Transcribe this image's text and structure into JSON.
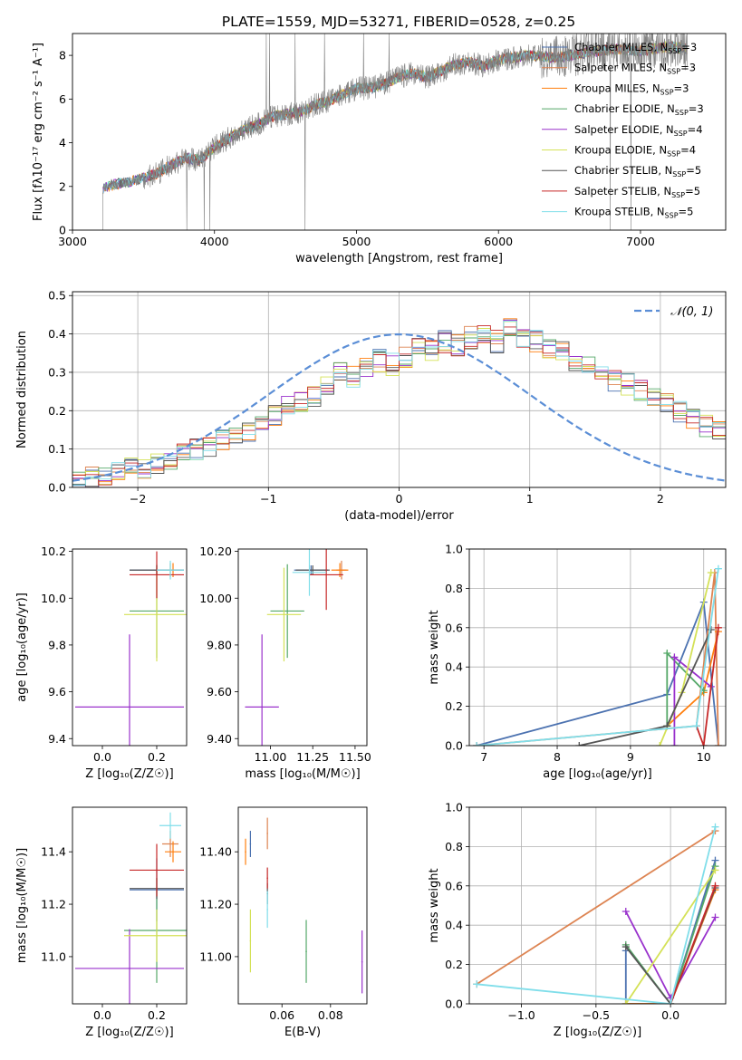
{
  "colors": [
    "#4c72b0",
    "#dd8452",
    "#ff7f0e",
    "#55a868",
    "#9932cc",
    "#d4e157",
    "#555555",
    "#c62828",
    "#80deea"
  ],
  "title": "PLATE=1559, MJD=53271, FIBERID=0528, z=0.25",
  "chart_data": [
    {
      "id": "spectrum",
      "type": "line",
      "xlabel": "wavelength [Angstrom, rest frame]",
      "ylabel": "Flux [f$_\\lambda$10$^{-17}$ erg cm$^{-2}$ s$^{-1}$ A$^{-1}$]",
      "ylabel_display": "Flux [fλ10⁻¹⁷ erg cm⁻² s⁻¹ A⁻¹]",
      "xlim": [
        3000,
        7600
      ],
      "ylim": [
        0,
        9
      ],
      "xticks": [
        3000,
        4000,
        5000,
        6000,
        7000
      ],
      "yticks": [
        0,
        2,
        4,
        6,
        8
      ],
      "legend": [
        {
          "label": "Chabrier MILES, N",
          "sub": "SSP",
          "tail": "=3"
        },
        {
          "label": "Salpeter MILES, N",
          "sub": "SSP",
          "tail": "=3"
        },
        {
          "label": "Kroupa MILES, N",
          "sub": "SSP",
          "tail": "=3"
        },
        {
          "label": "Chabrier ELODIE, N",
          "sub": "SSP",
          "tail": "=3"
        },
        {
          "label": "Salpeter ELODIE, N",
          "sub": "SSP",
          "tail": "=4"
        },
        {
          "label": "Kroupa ELODIE, N",
          "sub": "SSP",
          "tail": "=4"
        },
        {
          "label": "Chabrier STELIB, N",
          "sub": "SSP",
          "tail": "=5"
        },
        {
          "label": "Salpeter STELIB, N",
          "sub": "SSP",
          "tail": "=5"
        },
        {
          "label": "Kroupa STELIB, N",
          "sub": "SSP",
          "tail": "=5"
        }
      ],
      "data_series": {
        "name": "data",
        "color": "#808080",
        "x": [
          3215,
          3300,
          3400,
          3500,
          3600,
          3700,
          3800,
          3900,
          4000,
          4100,
          4200,
          4300,
          4400,
          4500,
          4600,
          4700,
          4800,
          4900,
          5000,
          5100,
          5200,
          5300,
          5400,
          5500,
          5600,
          5700,
          5800,
          5900,
          6000,
          6200,
          6400,
          6600,
          6800,
          7000,
          7200,
          7330
        ],
        "y": [
          1.9,
          2.1,
          2.2,
          2.4,
          2.6,
          3.0,
          3.3,
          3.2,
          3.8,
          4.2,
          4.6,
          4.8,
          5.2,
          5.3,
          5.4,
          5.7,
          5.9,
          6.2,
          6.5,
          6.5,
          6.7,
          7.0,
          7.2,
          7.0,
          7.3,
          7.6,
          7.7,
          7.5,
          7.8,
          8.0,
          7.9,
          8.1,
          8.3,
          8.2,
          8.4,
          8.3
        ]
      }
    },
    {
      "id": "residual-histogram",
      "type": "bar",
      "xlabel": "(data-model)/error",
      "ylabel": "Normed distribution",
      "xlim": [
        -2.5,
        2.5
      ],
      "ylim": [
        0,
        0.51
      ],
      "xticks": [
        -2,
        -1,
        0,
        1,
        2
      ],
      "yticks": [
        0.0,
        0.1,
        0.2,
        0.3,
        0.4,
        0.5
      ],
      "legend_label": "𝒩(0, 1)",
      "curve": {
        "mean": 0,
        "sigma": 1,
        "color": "#5b8ed6"
      },
      "bin_edges_start": -2.5,
      "bin_width": 0.1,
      "hist_values": [
        0.02,
        0.025,
        0.03,
        0.04,
        0.05,
        0.05,
        0.06,
        0.07,
        0.09,
        0.1,
        0.11,
        0.12,
        0.13,
        0.15,
        0.17,
        0.19,
        0.21,
        0.22,
        0.24,
        0.26,
        0.3,
        0.29,
        0.31,
        0.33,
        0.32,
        0.34,
        0.36,
        0.36,
        0.38,
        0.37,
        0.39,
        0.4,
        0.38,
        0.42,
        0.39,
        0.38,
        0.36,
        0.35,
        0.33,
        0.31,
        0.3,
        0.28,
        0.27,
        0.25,
        0.24,
        0.22,
        0.2,
        0.18,
        0.16,
        0.15
      ]
    },
    {
      "id": "age-vs-Z",
      "type": "scatter",
      "xlabel": "Z [log₁₀(Z/Z☉)]",
      "ylabel": "age  [log₁₀(age/yr)]",
      "xlim": [
        -0.11,
        0.31
      ],
      "ylim": [
        9.37,
        10.21
      ],
      "xticks": [
        0.0,
        0.2
      ],
      "yticks": [
        9.4,
        9.6,
        9.8,
        10.0,
        10.2
      ],
      "points": [
        {
          "x": 0.2,
          "y": 10.12,
          "xerr": 0.1,
          "yerr": 0.02
        },
        {
          "x": 0.25,
          "y": 10.12,
          "xerr": 0.02,
          "yerr": 0.03
        },
        {
          "x": 0.26,
          "y": 10.12,
          "xerr": 0.02,
          "yerr": 0.03
        },
        {
          "x": 0.2,
          "y": 9.945,
          "xerr": 0.1,
          "yerr": 0.2
        },
        {
          "x": 0.1,
          "y": 9.535,
          "xerr": 0.2,
          "yerr": 0.31
        },
        {
          "x": 0.2,
          "y": 9.93,
          "xerr": 0.12,
          "yerr": 0.2
        },
        {
          "x": 0.2,
          "y": 10.12,
          "xerr": 0.1,
          "yerr": 0.02
        },
        {
          "x": 0.2,
          "y": 10.1,
          "xerr": 0.1,
          "yerr": 0.1
        },
        {
          "x": 0.25,
          "y": 10.12,
          "xerr": 0.05,
          "yerr": 0.04
        }
      ]
    },
    {
      "id": "age-vs-mass",
      "type": "scatter",
      "xlabel": "mass [log₁₀(M/M☉)]",
      "ylabel": "",
      "xlim": [
        10.81,
        11.57
      ],
      "ylim": [
        9.37,
        10.21
      ],
      "xticks": [
        11.0,
        11.25,
        11.5
      ],
      "yticks": [
        9.4,
        9.6,
        9.8,
        10.0,
        10.2
      ],
      "points": [
        {
          "x": 11.24,
          "y": 10.12,
          "xerr": 0.1,
          "yerr": 0.02
        },
        {
          "x": 11.42,
          "y": 10.12,
          "xerr": 0.03,
          "yerr": 0.04
        },
        {
          "x": 11.41,
          "y": 10.12,
          "xerr": 0.05,
          "yerr": 0.03
        },
        {
          "x": 11.1,
          "y": 9.945,
          "xerr": 0.1,
          "yerr": 0.2
        },
        {
          "x": 10.95,
          "y": 9.535,
          "xerr": 0.1,
          "yerr": 0.31
        },
        {
          "x": 11.08,
          "y": 9.93,
          "xerr": 0.1,
          "yerr": 0.2
        },
        {
          "x": 11.25,
          "y": 10.12,
          "xerr": 0.1,
          "yerr": 0.02
        },
        {
          "x": 11.33,
          "y": 10.1,
          "xerr": 0.1,
          "yerr": 0.15
        },
        {
          "x": 11.23,
          "y": 10.11,
          "xerr": 0.1,
          "yerr": 0.1
        }
      ]
    },
    {
      "id": "mass-weight-vs-age",
      "type": "line",
      "xlabel": "age  [log₁₀(age/yr)]",
      "ylabel": "mass weight",
      "xlim": [
        6.8,
        10.3
      ],
      "ylim": [
        0,
        1.0
      ],
      "xticks": [
        7,
        8,
        9,
        10
      ],
      "yticks": [
        0.0,
        0.2,
        0.4,
        0.6,
        0.8,
        1.0
      ],
      "series": [
        {
          "x": [
            6.9,
            9.5,
            10.0,
            10.2
          ],
          "y": [
            0.0,
            0.26,
            0.73,
            0.0
          ]
        },
        {
          "x": [
            6.9,
            9.9,
            10.15,
            10.2
          ],
          "y": [
            0.0,
            0.1,
            0.88,
            0.0
          ]
        },
        {
          "x": [
            9.5,
            10.0,
            10.2
          ],
          "y": [
            0.1,
            0.27,
            0.58
          ]
        },
        {
          "x": [
            9.5,
            9.5,
            10.0
          ],
          "y": [
            0.1,
            0.47,
            0.28
          ]
        },
        {
          "x": [
            9.6,
            9.6,
            10.1
          ],
          "y": [
            0.0,
            0.45,
            0.3
          ]
        },
        {
          "x": [
            9.4,
            9.7,
            10.1
          ],
          "y": [
            0.0,
            0.27,
            0.88
          ]
        },
        {
          "x": [
            8.3,
            9.5,
            10.1
          ],
          "y": [
            0.0,
            0.1,
            0.59
          ]
        },
        {
          "x": [
            9.9,
            10.0,
            10.2
          ],
          "y": [
            0.1,
            0.0,
            0.6
          ]
        },
        {
          "x": [
            6.9,
            9.9,
            10.2
          ],
          "y": [
            0.0,
            0.1,
            0.9
          ]
        }
      ]
    },
    {
      "id": "mass-vs-Z",
      "type": "scatter",
      "xlabel": "Z [log₁₀(Z/Z☉)]",
      "ylabel": "mass [log₁₀(M/M☉)]",
      "xlim": [
        -0.11,
        0.31
      ],
      "ylim": [
        10.82,
        11.57
      ],
      "xticks": [
        0.0,
        0.2
      ],
      "yticks": [
        11.0,
        11.2,
        11.4
      ],
      "points": [
        {
          "x": 0.2,
          "y": 11.255,
          "xerr": 0.1,
          "yerr": 0.12
        },
        {
          "x": 0.25,
          "y": 11.43,
          "xerr": 0.03,
          "yerr": 0.05
        },
        {
          "x": 0.26,
          "y": 11.4,
          "xerr": 0.03,
          "yerr": 0.04
        },
        {
          "x": 0.2,
          "y": 11.1,
          "xerr": 0.12,
          "yerr": 0.2
        },
        {
          "x": 0.1,
          "y": 10.955,
          "xerr": 0.2,
          "yerr": 0.15
        },
        {
          "x": 0.2,
          "y": 11.08,
          "xerr": 0.12,
          "yerr": 0.1
        },
        {
          "x": 0.2,
          "y": 11.26,
          "xerr": 0.1,
          "yerr": 0.04
        },
        {
          "x": 0.2,
          "y": 11.33,
          "xerr": 0.1,
          "yerr": 0.1
        },
        {
          "x": 0.25,
          "y": 11.5,
          "xerr": 0.04,
          "yerr": 0.05
        }
      ]
    },
    {
      "id": "mass-vs-EBV",
      "type": "scatter",
      "xlabel": "E(B-V)",
      "ylabel": "",
      "xlim": [
        0.042,
        0.095
      ],
      "ylim": [
        10.82,
        11.57
      ],
      "xticks": [
        0.06,
        0.08
      ],
      "yticks": [
        11.0,
        11.2,
        11.4
      ],
      "points": [
        {
          "x": 0.047,
          "y": 11.43,
          "yerr": 0.05
        },
        {
          "x": 0.054,
          "y": 11.47,
          "yerr": 0.06
        },
        {
          "x": 0.045,
          "y": 11.4,
          "yerr": 0.05
        },
        {
          "x": 0.07,
          "y": 11.02,
          "yerr": 0.12
        },
        {
          "x": 0.093,
          "y": 10.98,
          "yerr": 0.12
        },
        {
          "x": 0.047,
          "y": 11.06,
          "yerr": 0.12
        },
        {
          "x": 0.054,
          "y": 11.24,
          "yerr": 0.04
        },
        {
          "x": 0.054,
          "y": 11.3,
          "yerr": 0.04
        },
        {
          "x": 0.054,
          "y": 11.18,
          "yerr": 0.07
        }
      ]
    },
    {
      "id": "mass-weight-vs-Z",
      "type": "line",
      "xlabel": "Z [log₁₀(Z/Z☉)]",
      "ylabel": "mass weight",
      "xlim": [
        -1.35,
        0.37
      ],
      "ylim": [
        0,
        1.0
      ],
      "xticks": [
        -1.0,
        -0.5,
        0.0
      ],
      "yticks": [
        0.0,
        0.2,
        0.4,
        0.6,
        0.8,
        1.0
      ],
      "series": [
        {
          "x": [
            -0.3,
            -0.3,
            0.0,
            0.3
          ],
          "y": [
            0.27,
            0.0,
            0.0,
            0.73
          ]
        },
        {
          "x": [
            -1.3,
            0.3
          ],
          "y": [
            0.1,
            0.88
          ]
        },
        {
          "x": [
            -0.3,
            0.0,
            0.3
          ],
          "y": [
            0.0,
            0.0,
            0.58
          ]
        },
        {
          "x": [
            -0.3,
            0.0,
            0.3
          ],
          "y": [
            0.3,
            0.0,
            0.7
          ]
        },
        {
          "x": [
            -0.3,
            0.0,
            0.3
          ],
          "y": [
            0.47,
            0.03,
            0.44
          ]
        },
        {
          "x": [
            -0.3,
            0.3
          ],
          "y": [
            0.0,
            0.68
          ]
        },
        {
          "x": [
            -0.3,
            0.0,
            0.3
          ],
          "y": [
            0.29,
            0.0,
            0.59
          ]
        },
        {
          "x": [
            0.0,
            0.3
          ],
          "y": [
            0.0,
            0.6
          ]
        },
        {
          "x": [
            -1.3,
            -0.0,
            0.3
          ],
          "y": [
            0.1,
            0.0,
            0.9
          ]
        }
      ]
    }
  ]
}
